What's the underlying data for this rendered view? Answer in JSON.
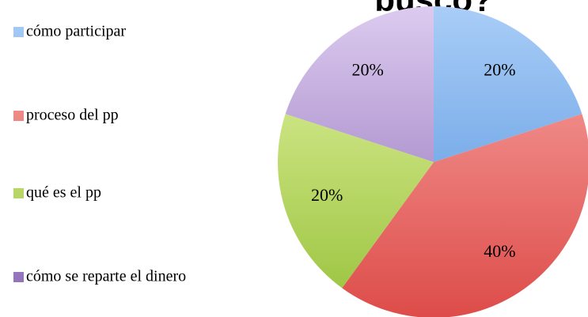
{
  "chart_data": {
    "type": "pie",
    "title": "buscó?",
    "categories": [
      "cómo participar",
      "proceso del pp",
      "qué es el pp",
      "cómo se reparte el dinero"
    ],
    "values": [
      20,
      40,
      20,
      20
    ],
    "value_labels": [
      "20%",
      "40%",
      "20%",
      "20%"
    ],
    "colors": [
      [
        "#a9cdf7",
        "#4d8edb"
      ],
      [
        "#f8a9a6",
        "#dd4c49"
      ],
      [
        "#e6f5a6",
        "#98c23b"
      ],
      [
        "#dccbef",
        "#8a68b4"
      ]
    ]
  }
}
